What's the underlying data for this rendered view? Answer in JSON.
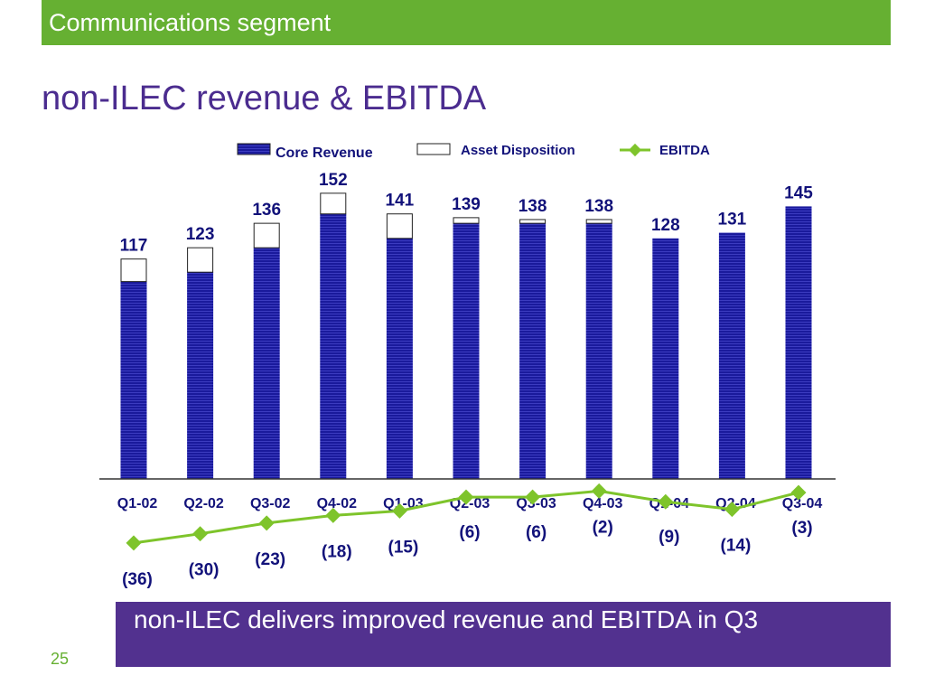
{
  "header": {
    "section_title": "Communications segment"
  },
  "slide_title": "non-ILEC revenue & EBITDA",
  "footer": {
    "message": "non-ILEC delivers improved revenue and EBITDA in Q3"
  },
  "page_number": "25",
  "colors": {
    "core_revenue": "#1a1a9c",
    "asset_disposition": "#ffffff",
    "ebitda_line": "#7ec42b",
    "banner": "#66b032",
    "title": "#4b2c8f",
    "footer_box": "#52318f"
  },
  "chart_data": {
    "type": "bar",
    "categories": [
      "Q1-02",
      "Q2-02",
      "Q3-02",
      "Q4-02",
      "Q1-03",
      "Q2-03",
      "Q3-03",
      "Q4-03",
      "Q1-04",
      "Q2-04",
      "Q3-04"
    ],
    "series": [
      {
        "name": "Core Revenue",
        "kind": "bar",
        "stack": "revenue",
        "values": [
          105,
          110,
          123,
          141,
          128,
          136,
          136,
          136,
          128,
          131,
          145
        ]
      },
      {
        "name": "Asset Disposition",
        "kind": "bar",
        "stack": "revenue",
        "values": [
          12,
          13,
          13,
          11,
          13,
          3,
          2,
          2,
          0,
          0,
          0
        ]
      },
      {
        "name": "EBITDA",
        "kind": "line",
        "values": [
          -36,
          -30,
          -23,
          -18,
          -15,
          -6,
          -6,
          -2,
          -9,
          -14,
          -3
        ]
      }
    ],
    "total_labels": [
      "117",
      "123",
      "136",
      "152",
      "141",
      "139",
      "138",
      "138",
      "128",
      "131",
      "145"
    ],
    "ebitda_labels": [
      "(36)",
      "(30)",
      "(23)",
      "(18)",
      "(15)",
      "(6)",
      "(6)",
      "(2)",
      "(9)",
      "(14)",
      "(3)"
    ],
    "legend": [
      "Core Revenue",
      "Asset Disposition",
      "EBITDA"
    ],
    "legend_position": "top",
    "grid": false,
    "xlabel": "",
    "ylabel": "",
    "title": ""
  }
}
